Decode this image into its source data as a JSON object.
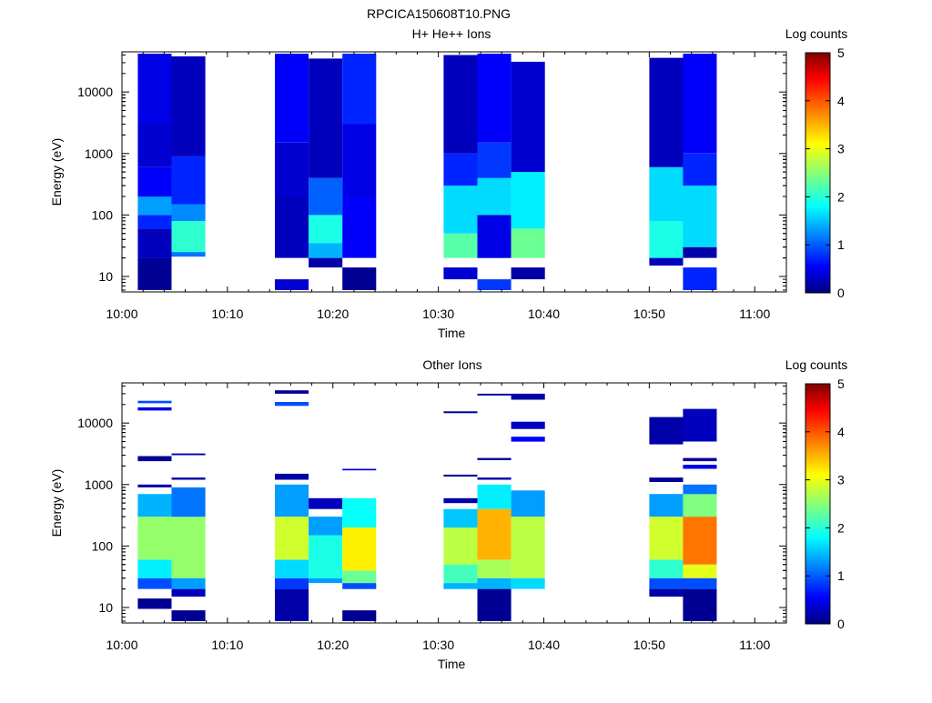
{
  "figure_title": "RPCICA150608T10.PNG",
  "colorbar": {
    "label": "Log counts",
    "ticks": [
      "0",
      "1",
      "2",
      "3",
      "4",
      "5"
    ],
    "range": [
      0,
      5
    ]
  },
  "chart_data": [
    {
      "type": "heatmap",
      "title": "H+ He++ Ions",
      "xlabel": "Time",
      "ylabel": "Energy (eV)",
      "y_scale": "log",
      "ylim": [
        5.6,
        45000
      ],
      "xlim": [
        "10:00",
        "11:03"
      ],
      "x_ticks": [
        "10:00",
        "10:10",
        "10:20",
        "10:30",
        "10:40",
        "10:50",
        "11:00"
      ],
      "y_ticks": [
        "10",
        "100",
        "1000",
        "10000"
      ],
      "z_label": "Log counts",
      "zlim": [
        0,
        5
      ],
      "columns": [
        {
          "t_start": "10:01.5",
          "t_end": "10:04.7",
          "cells": [
            {
              "e_low": 6,
              "e_high": 20,
              "z": 0.1
            },
            {
              "e_low": 20,
              "e_high": 60,
              "z": 0.3
            },
            {
              "e_low": 60,
              "e_high": 100,
              "z": 0.8
            },
            {
              "e_low": 100,
              "e_high": 200,
              "z": 1.4
            },
            {
              "e_low": 200,
              "e_high": 600,
              "z": 0.6
            },
            {
              "e_low": 600,
              "e_high": 3000,
              "z": 0.4
            },
            {
              "e_low": 3000,
              "e_high": 42000,
              "z": 0.5
            }
          ]
        },
        {
          "t_start": "10:04.7",
          "t_end": "10:07.9",
          "cells": [
            {
              "e_low": 21,
              "e_high": 25,
              "z": 1.2
            },
            {
              "e_low": 25,
              "e_high": 80,
              "z": 2.1
            },
            {
              "e_low": 80,
              "e_high": 150,
              "z": 1.3
            },
            {
              "e_low": 150,
              "e_high": 900,
              "z": 0.8
            },
            {
              "e_low": 900,
              "e_high": 38000,
              "z": 0.3
            }
          ]
        },
        {
          "t_start": "10:14.5",
          "t_end": "10:17.7",
          "cells": [
            {
              "e_low": 6,
              "e_high": 9,
              "z": 0.4
            },
            {
              "e_low": 20,
              "e_high": 200,
              "z": 0.3
            },
            {
              "e_low": 200,
              "e_high": 1500,
              "z": 0.4
            },
            {
              "e_low": 1500,
              "e_high": 42000,
              "z": 0.6
            }
          ]
        },
        {
          "t_start": "10:17.7",
          "t_end": "10:20.9",
          "cells": [
            {
              "e_low": 14,
              "e_high": 20,
              "z": 0.2
            },
            {
              "e_low": 20,
              "e_high": 35,
              "z": 1.5
            },
            {
              "e_low": 35,
              "e_high": 100,
              "z": 2.0
            },
            {
              "e_low": 100,
              "e_high": 400,
              "z": 1.1
            },
            {
              "e_low": 400,
              "e_high": 35000,
              "z": 0.3
            }
          ]
        },
        {
          "t_start": "10:20.9",
          "t_end": "10:24.1",
          "cells": [
            {
              "e_low": 6,
              "e_high": 14,
              "z": 0.1
            },
            {
              "e_low": 20,
              "e_high": 200,
              "z": 0.6
            },
            {
              "e_low": 200,
              "e_high": 3000,
              "z": 0.5
            },
            {
              "e_low": 3000,
              "e_high": 42000,
              "z": 0.8
            }
          ]
        },
        {
          "t_start": "10:30.5",
          "t_end": "10:33.7",
          "cells": [
            {
              "e_low": 9,
              "e_high": 14,
              "z": 0.4
            },
            {
              "e_low": 20,
              "e_high": 50,
              "z": 2.3
            },
            {
              "e_low": 50,
              "e_high": 300,
              "z": 1.7
            },
            {
              "e_low": 300,
              "e_high": 1000,
              "z": 0.8
            },
            {
              "e_low": 1000,
              "e_high": 40000,
              "z": 0.3
            }
          ]
        },
        {
          "t_start": "10:33.7",
          "t_end": "10:36.9",
          "cells": [
            {
              "e_low": 6,
              "e_high": 9,
              "z": 0.9
            },
            {
              "e_low": 20,
              "e_high": 100,
              "z": 0.5
            },
            {
              "e_low": 100,
              "e_high": 400,
              "z": 1.7
            },
            {
              "e_low": 400,
              "e_high": 1500,
              "z": 0.9
            },
            {
              "e_low": 1500,
              "e_high": 42000,
              "z": 0.6
            }
          ]
        },
        {
          "t_start": "10:36.9",
          "t_end": "10:40.1",
          "cells": [
            {
              "e_low": 9,
              "e_high": 14,
              "z": 0.2
            },
            {
              "e_low": 20,
              "e_high": 60,
              "z": 2.4
            },
            {
              "e_low": 60,
              "e_high": 500,
              "z": 1.8
            },
            {
              "e_low": 500,
              "e_high": 31000,
              "z": 0.4
            }
          ]
        },
        {
          "t_start": "10:50.0",
          "t_end": "10:53.2",
          "cells": [
            {
              "e_low": 15,
              "e_high": 20,
              "z": 0.3
            },
            {
              "e_low": 20,
              "e_high": 80,
              "z": 2.0
            },
            {
              "e_low": 80,
              "e_high": 600,
              "z": 1.7
            },
            {
              "e_low": 600,
              "e_high": 36000,
              "z": 0.3
            }
          ]
        },
        {
          "t_start": "10:53.2",
          "t_end": "10:56.4",
          "cells": [
            {
              "e_low": 6,
              "e_high": 14,
              "z": 0.8
            },
            {
              "e_low": 20,
              "e_high": 30,
              "z": 0.2
            },
            {
              "e_low": 30,
              "e_high": 300,
              "z": 1.7
            },
            {
              "e_low": 300,
              "e_high": 1000,
              "z": 0.8
            },
            {
              "e_low": 1000,
              "e_high": 42000,
              "z": 0.6
            }
          ]
        }
      ]
    },
    {
      "type": "heatmap",
      "title": "Other Ions",
      "xlabel": "Time",
      "ylabel": "Energy (eV)",
      "y_scale": "log",
      "ylim": [
        5.6,
        45000
      ],
      "xlim": [
        "10:00",
        "11:03"
      ],
      "x_ticks": [
        "10:00",
        "10:10",
        "10:20",
        "10:30",
        "10:40",
        "10:50",
        "11:00"
      ],
      "y_ticks": [
        "10",
        "100",
        "1000",
        "10000"
      ],
      "z_label": "Log counts",
      "zlim": [
        0,
        5
      ],
      "columns": [
        {
          "t_start": "10:01.5",
          "t_end": "10:04.7",
          "cells": [
            {
              "e_low": 9.5,
              "e_high": 14,
              "z": 0.1
            },
            {
              "e_low": 20,
              "e_high": 30,
              "z": 1.0
            },
            {
              "e_low": 30,
              "e_high": 60,
              "z": 1.8
            },
            {
              "e_low": 60,
              "e_high": 300,
              "z": 2.6
            },
            {
              "e_low": 300,
              "e_high": 700,
              "z": 1.5
            },
            {
              "e_low": 900,
              "e_high": 1000,
              "z": 0.2
            },
            {
              "e_low": 2400,
              "e_high": 2900,
              "z": 0.1
            },
            {
              "e_low": 16000,
              "e_high": 18000,
              "z": 0.5
            },
            {
              "e_low": 21000,
              "e_high": 23000,
              "z": 1.0
            }
          ]
        },
        {
          "t_start": "10:04.7",
          "t_end": "10:07.9",
          "cells": [
            {
              "e_low": 6,
              "e_high": 9,
              "z": 0.1
            },
            {
              "e_low": 15,
              "e_high": 20,
              "z": 0.3
            },
            {
              "e_low": 20,
              "e_high": 30,
              "z": 1.4
            },
            {
              "e_low": 30,
              "e_high": 300,
              "z": 2.6
            },
            {
              "e_low": 300,
              "e_high": 900,
              "z": 1.2
            },
            {
              "e_low": 1200,
              "e_high": 1300,
              "z": 0.2
            },
            {
              "e_low": 3000,
              "e_high": 3200,
              "z": 0.2
            }
          ]
        },
        {
          "t_start": "10:14.5",
          "t_end": "10:17.7",
          "cells": [
            {
              "e_low": 6,
              "e_high": 20,
              "z": 0.2
            },
            {
              "e_low": 20,
              "e_high": 30,
              "z": 0.9
            },
            {
              "e_low": 30,
              "e_high": 60,
              "z": 1.7
            },
            {
              "e_low": 60,
              "e_high": 300,
              "z": 2.9
            },
            {
              "e_low": 300,
              "e_high": 1000,
              "z": 1.4
            },
            {
              "e_low": 1200,
              "e_high": 1500,
              "z": 0.2
            },
            {
              "e_low": 19000,
              "e_high": 22000,
              "z": 1.0
            },
            {
              "e_low": 30000,
              "e_high": 34000,
              "z": 0.1
            }
          ]
        },
        {
          "t_start": "10:17.7",
          "t_end": "10:20.9",
          "cells": [
            {
              "e_low": 25,
              "e_high": 30,
              "z": 1.4
            },
            {
              "e_low": 30,
              "e_high": 150,
              "z": 2.0
            },
            {
              "e_low": 150,
              "e_high": 300,
              "z": 1.4
            },
            {
              "e_low": 400,
              "e_high": 600,
              "z": 0.3
            }
          ]
        },
        {
          "t_start": "10:20.9",
          "t_end": "10:24.1",
          "cells": [
            {
              "e_low": 6,
              "e_high": 9,
              "z": 0.1
            },
            {
              "e_low": 20,
              "e_high": 25,
              "z": 1.0
            },
            {
              "e_low": 25,
              "e_high": 40,
              "z": 2.4
            },
            {
              "e_low": 40,
              "e_high": 200,
              "z": 3.2
            },
            {
              "e_low": 200,
              "e_high": 600,
              "z": 1.9
            },
            {
              "e_low": 1700,
              "e_high": 1800,
              "z": 0.5
            }
          ]
        },
        {
          "t_start": "10:30.5",
          "t_end": "10:33.7",
          "cells": [
            {
              "e_low": 20,
              "e_high": 25,
              "z": 1.5
            },
            {
              "e_low": 25,
              "e_high": 50,
              "z": 2.2
            },
            {
              "e_low": 50,
              "e_high": 200,
              "z": 2.8
            },
            {
              "e_low": 200,
              "e_high": 400,
              "z": 1.6
            },
            {
              "e_low": 500,
              "e_high": 600,
              "z": 0.2
            },
            {
              "e_low": 1350,
              "e_high": 1450,
              "z": 0.1
            },
            {
              "e_low": 14500,
              "e_high": 15500,
              "z": 0.1
            }
          ]
        },
        {
          "t_start": "10:33.7",
          "t_end": "10:36.9",
          "cells": [
            {
              "e_low": 6,
              "e_high": 20,
              "z": 0.1
            },
            {
              "e_low": 20,
              "e_high": 30,
              "z": 1.5
            },
            {
              "e_low": 30,
              "e_high": 60,
              "z": 2.7
            },
            {
              "e_low": 60,
              "e_high": 400,
              "z": 3.5
            },
            {
              "e_low": 400,
              "e_high": 1000,
              "z": 1.8
            },
            {
              "e_low": 1200,
              "e_high": 1300,
              "z": 0.2
            },
            {
              "e_low": 2500,
              "e_high": 2700,
              "z": 0.1
            },
            {
              "e_low": 28000,
              "e_high": 30000,
              "z": 0.2
            }
          ]
        },
        {
          "t_start": "10:36.9",
          "t_end": "10:40.1",
          "cells": [
            {
              "e_low": 20,
              "e_high": 30,
              "z": 1.7
            },
            {
              "e_low": 30,
              "e_high": 300,
              "z": 2.8
            },
            {
              "e_low": 300,
              "e_high": 800,
              "z": 1.4
            },
            {
              "e_low": 5000,
              "e_high": 6000,
              "z": 0.6
            },
            {
              "e_low": 8000,
              "e_high": 10500,
              "z": 0.3
            },
            {
              "e_low": 24000,
              "e_high": 30000,
              "z": 0.2
            }
          ]
        },
        {
          "t_start": "10:50.0",
          "t_end": "10:53.2",
          "cells": [
            {
              "e_low": 15,
              "e_high": 20,
              "z": 0.2
            },
            {
              "e_low": 20,
              "e_high": 30,
              "z": 1.0
            },
            {
              "e_low": 30,
              "e_high": 60,
              "z": 2.1
            },
            {
              "e_low": 60,
              "e_high": 300,
              "z": 2.9
            },
            {
              "e_low": 300,
              "e_high": 700,
              "z": 1.4
            },
            {
              "e_low": 1100,
              "e_high": 1300,
              "z": 0.1
            },
            {
              "e_low": 4500,
              "e_high": 12500,
              "z": 0.2
            }
          ]
        },
        {
          "t_start": "10:53.2",
          "t_end": "10:56.4",
          "cells": [
            {
              "e_low": 6,
              "e_high": 20,
              "z": 0.1
            },
            {
              "e_low": 20,
              "e_high": 30,
              "z": 1.0
            },
            {
              "e_low": 30,
              "e_high": 50,
              "z": 3.0
            },
            {
              "e_low": 50,
              "e_high": 300,
              "z": 3.8
            },
            {
              "e_low": 300,
              "e_high": 700,
              "z": 2.5
            },
            {
              "e_low": 700,
              "e_high": 1000,
              "z": 1.2
            },
            {
              "e_low": 1800,
              "e_high": 2100,
              "z": 0.5
            },
            {
              "e_low": 2400,
              "e_high": 2700,
              "z": 0.2
            },
            {
              "e_low": 5000,
              "e_high": 17000,
              "z": 0.3
            }
          ]
        }
      ]
    }
  ]
}
